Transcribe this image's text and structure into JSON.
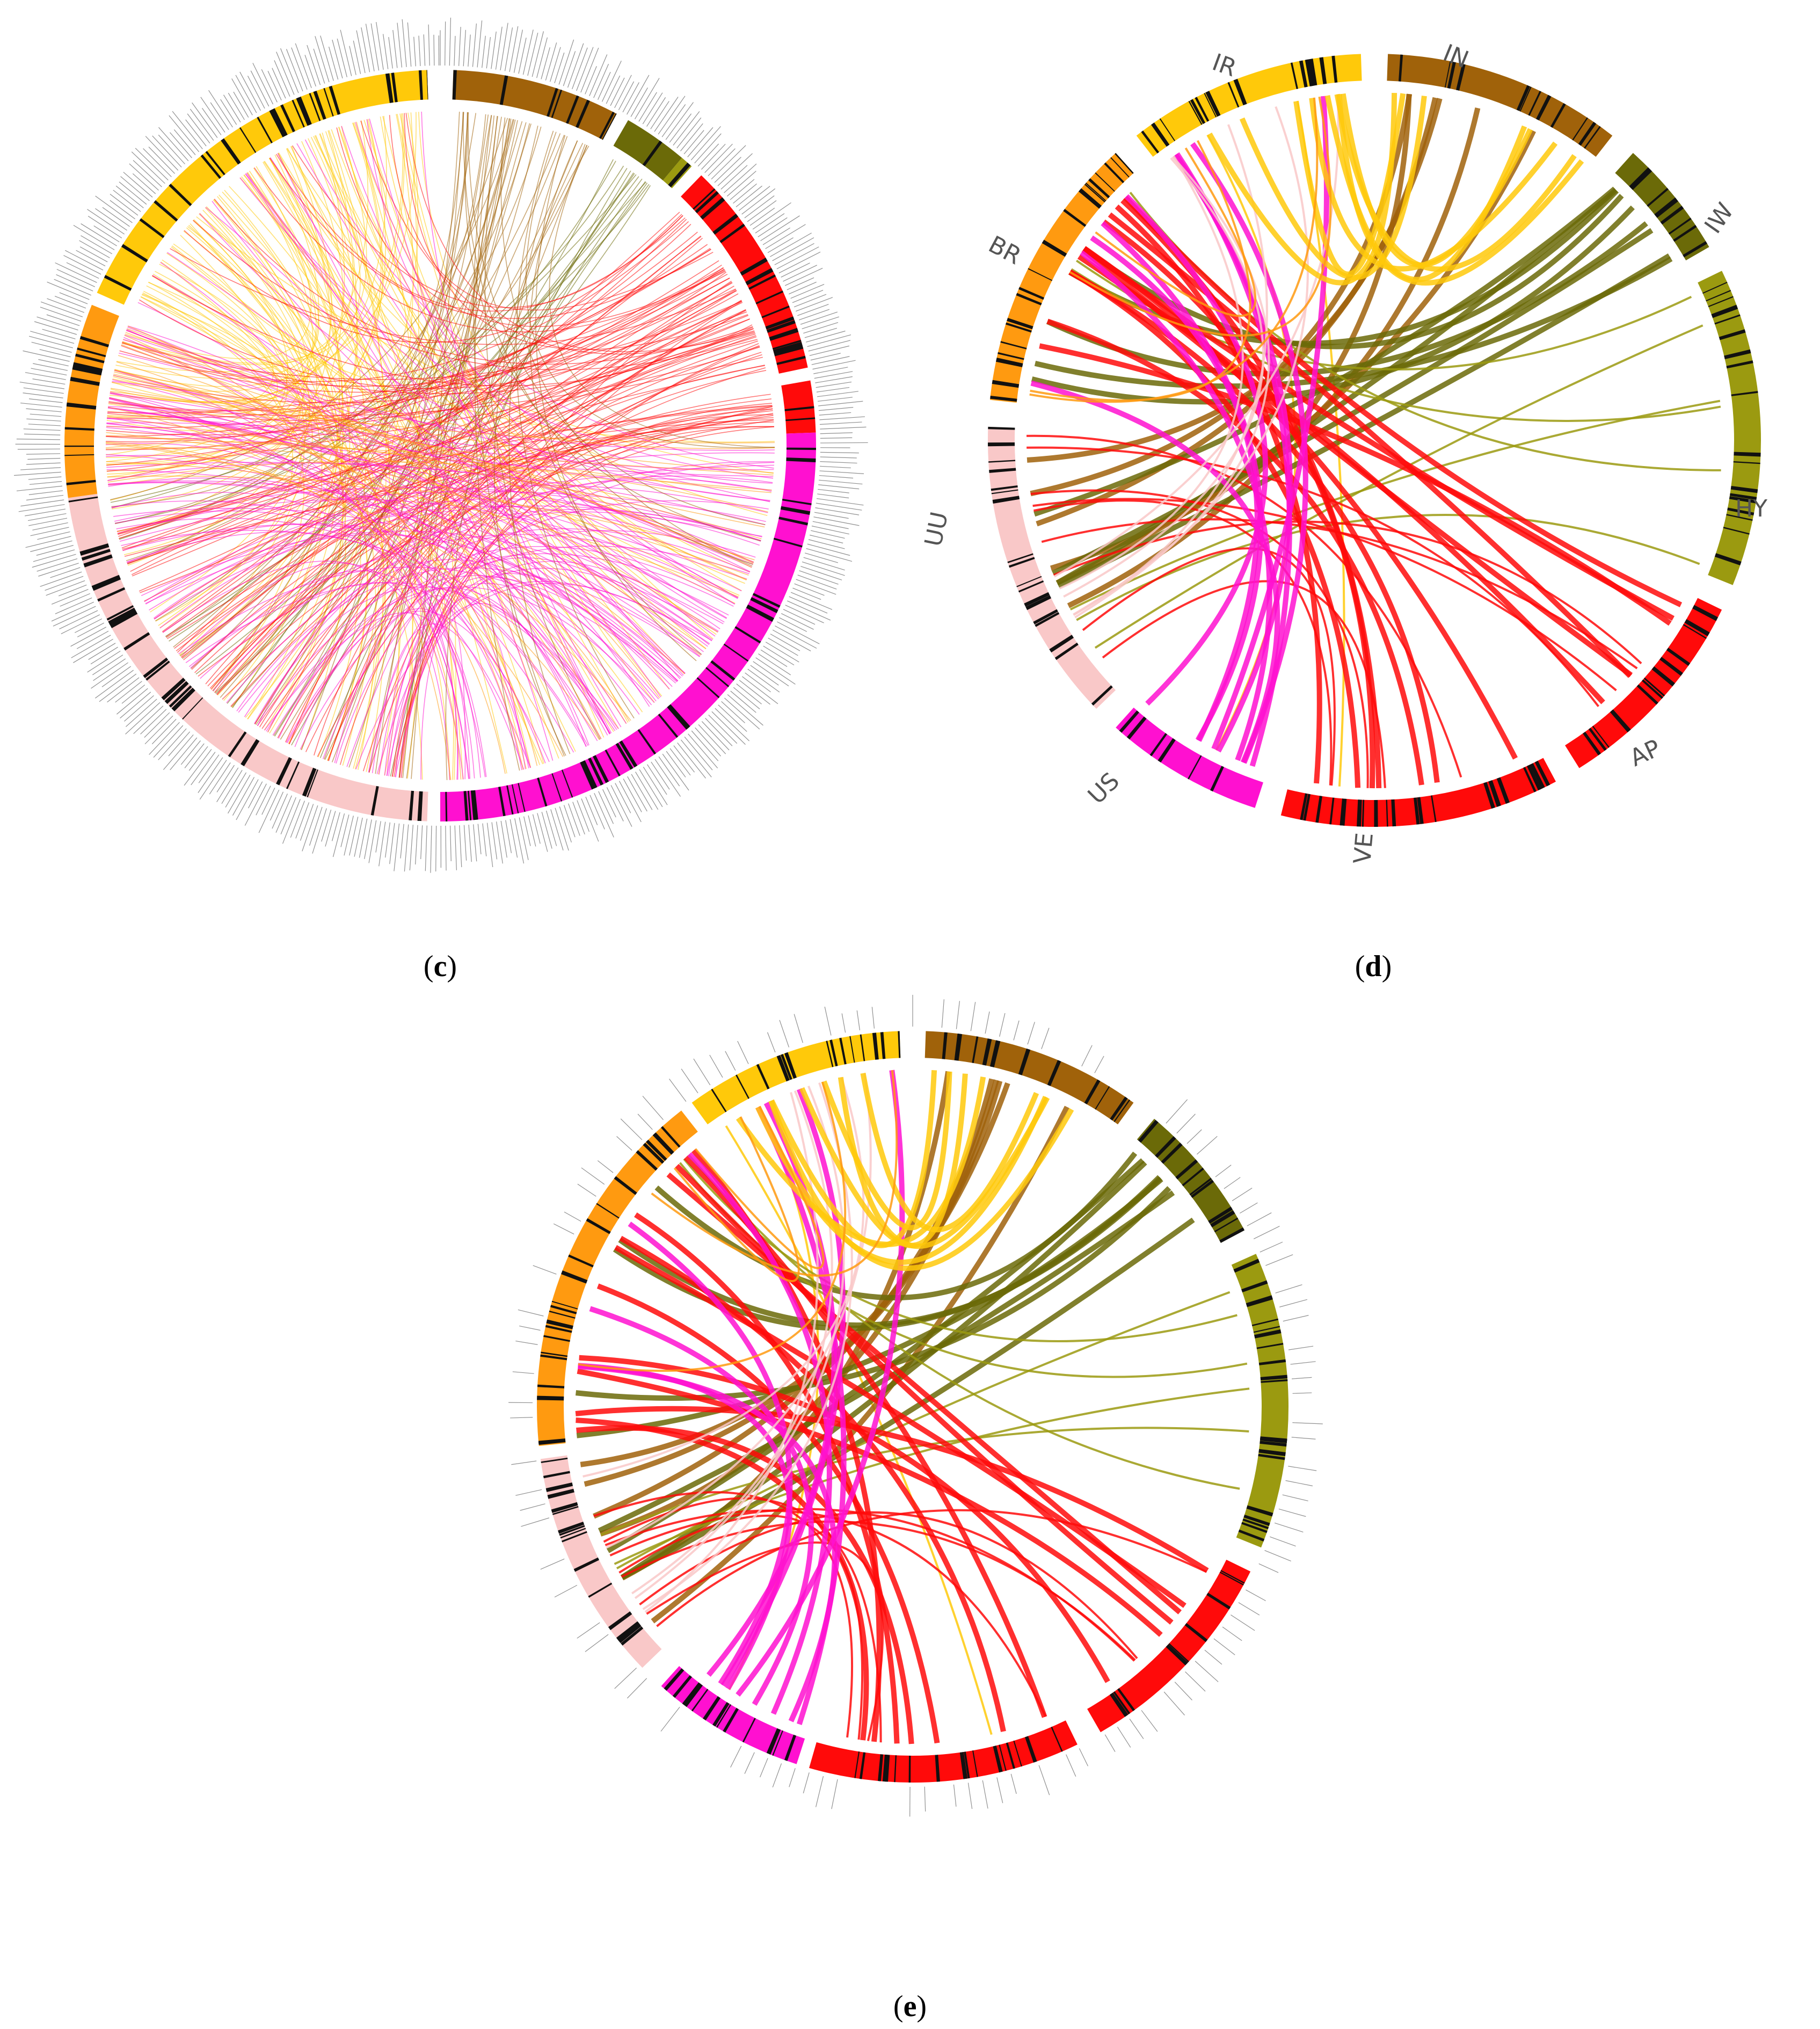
{
  "captions": {
    "c": {
      "open": "(",
      "letter": "c",
      "close": ")"
    },
    "d": {
      "open": "(",
      "letter": "d",
      "close": ")"
    },
    "e": {
      "open": "(",
      "letter": "e",
      "close": ")"
    }
  },
  "segments": [
    {
      "code": "IN",
      "color": "#a0620a"
    },
    {
      "code": "IW",
      "color": "#6b6a08"
    },
    {
      "code": "HY",
      "color": "#9b9a10"
    },
    {
      "code": "AP",
      "color": "#ff0a0a"
    },
    {
      "code": "VE",
      "color": "#ff0a0a"
    },
    {
      "code": "US",
      "color": "#ff10d0"
    },
    {
      "code": "UU",
      "color": "#f9c8c8"
    },
    {
      "code": "BR",
      "color": "#ff9a10"
    },
    {
      "code": "IR",
      "color": "#ffc90a"
    }
  ],
  "panels": {
    "c": {
      "name": "panel-c",
      "seed": 11,
      "density": "high"
    },
    "d": {
      "name": "panel-d",
      "seed": 23,
      "density": "low"
    },
    "e": {
      "name": "panel-e",
      "seed": 37,
      "density": "low"
    }
  }
}
